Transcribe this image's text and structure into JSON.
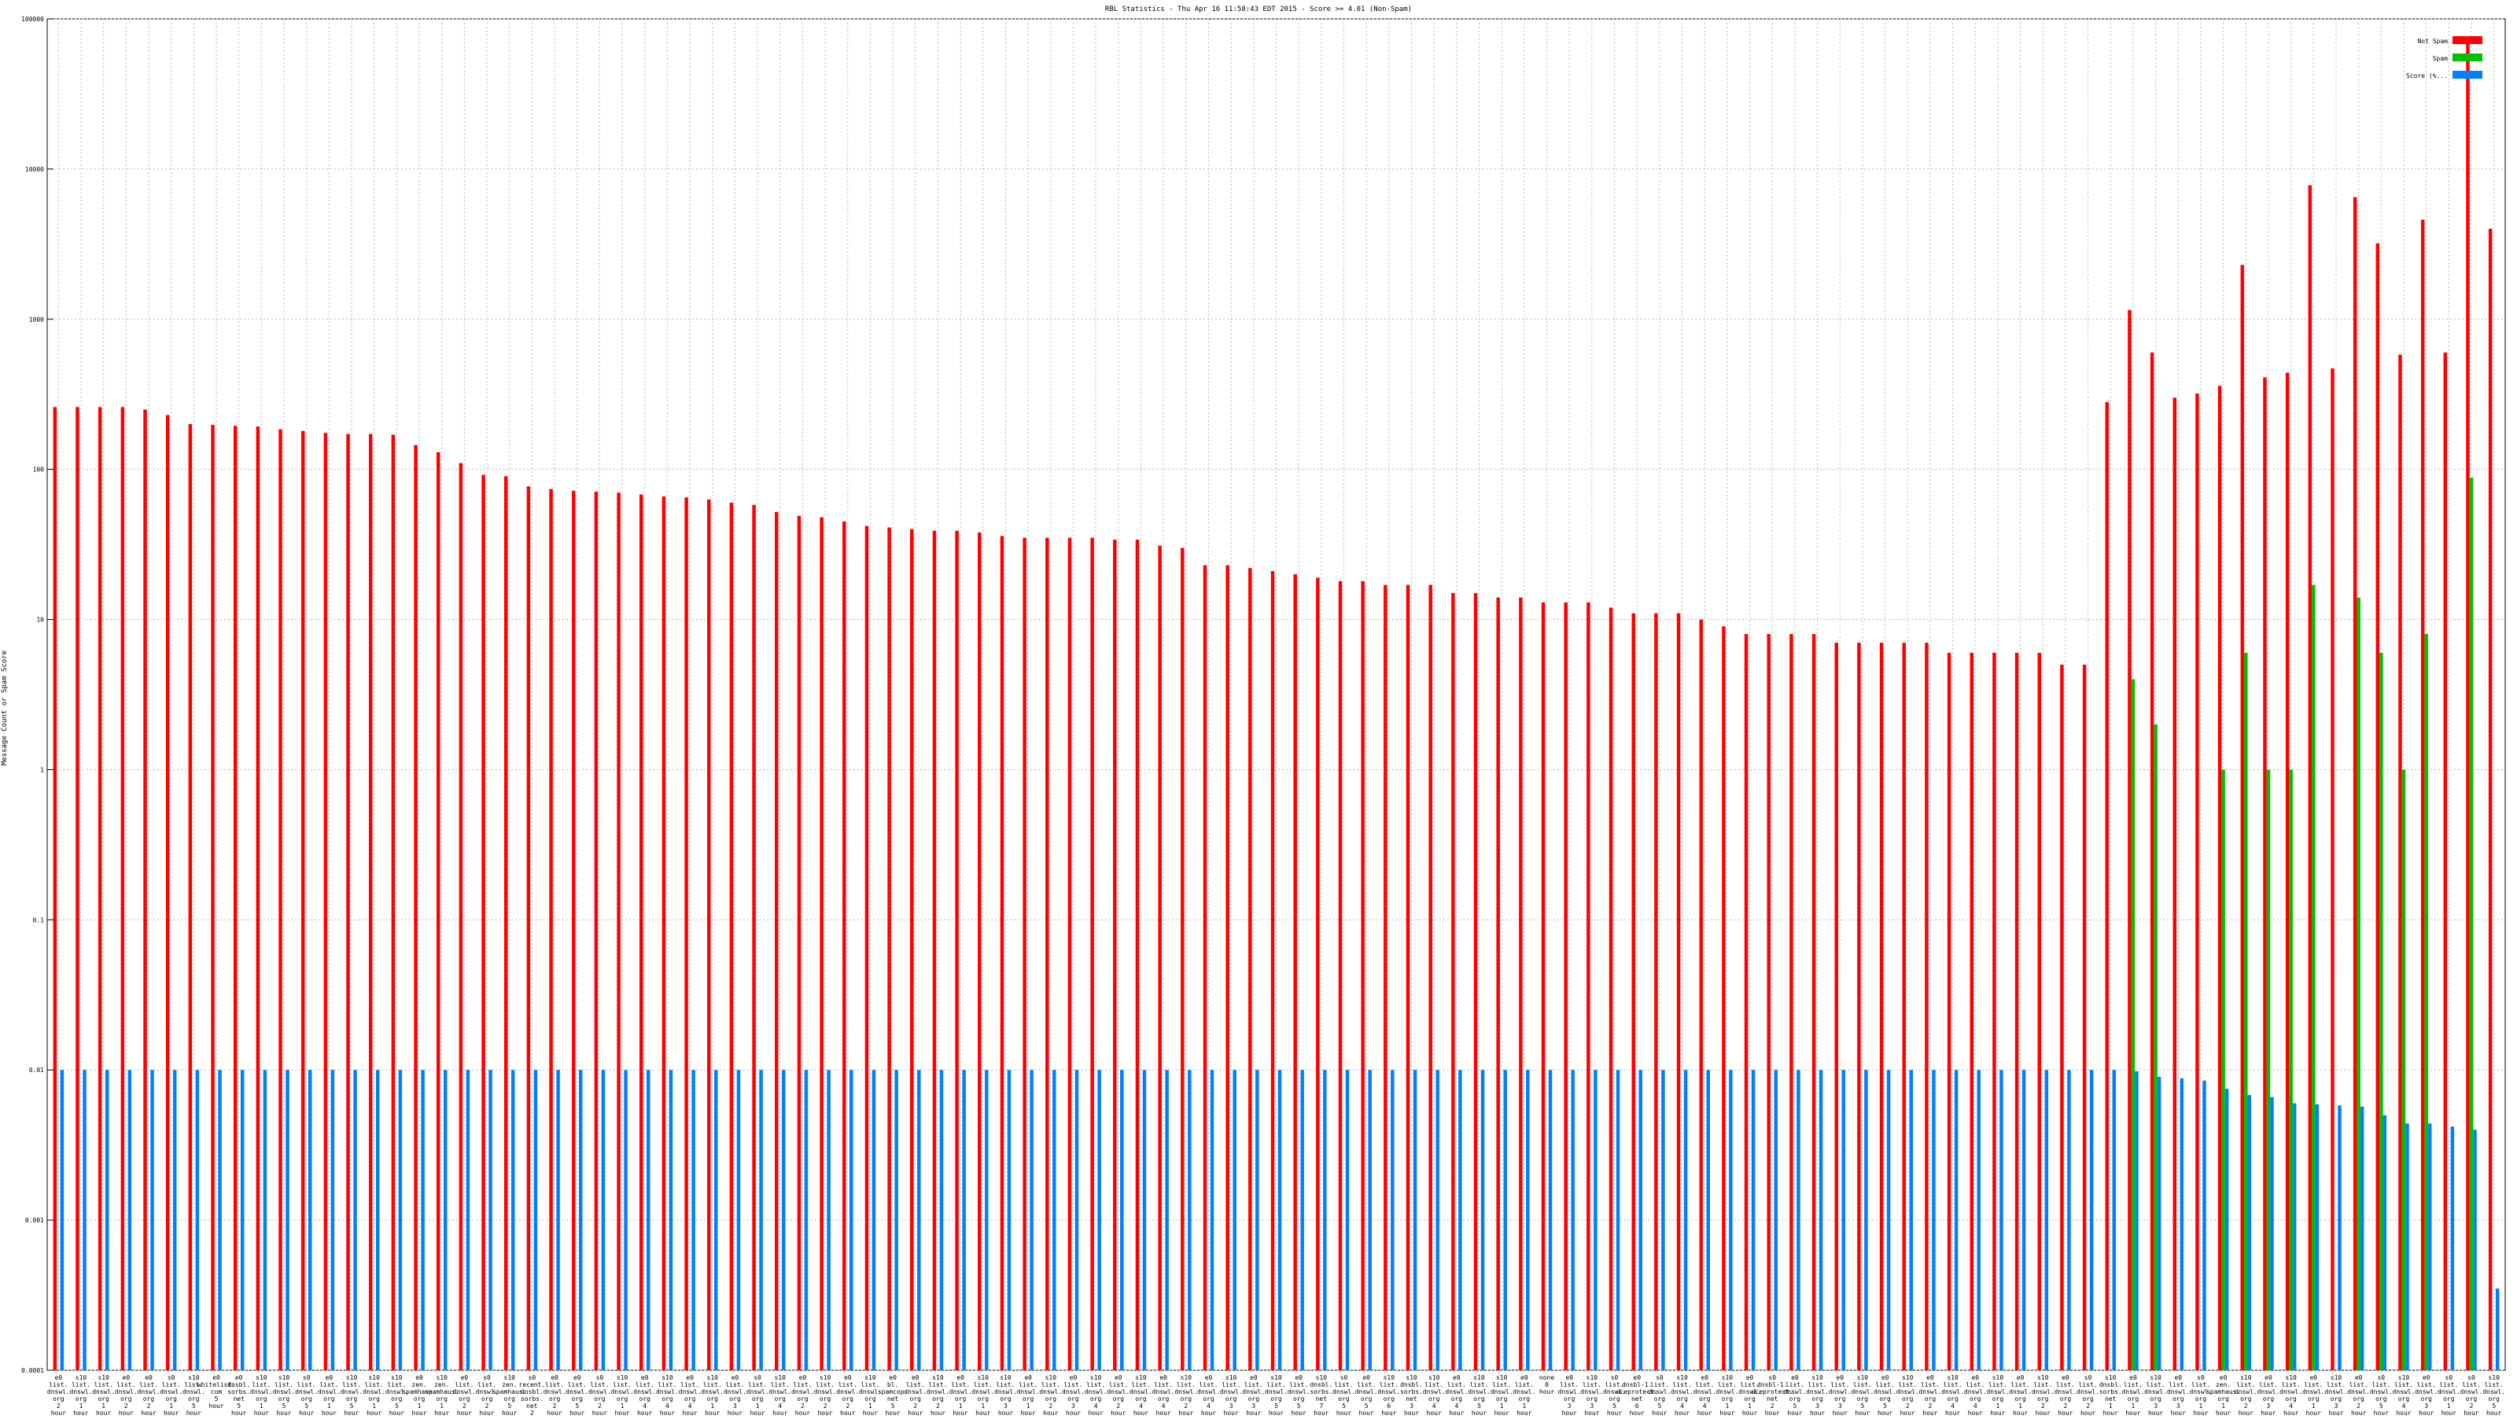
{
  "chart_data": {
    "type": "bar",
    "title": "RBL Statistics - Thu Apr 16 11:58:43 EDT 2015 - Score >= 4.01 (Non-Spam)",
    "xlabel": "",
    "ylabel": "Message Count or Spam Score",
    "yscale": "log",
    "ylim": [
      0.0001,
      100000
    ],
    "yticks": [
      0.0001,
      0.001,
      0.01,
      0.1,
      1,
      10,
      100,
      1000,
      10000,
      100000
    ],
    "ytick_labels": [
      "0.0001",
      "0.001",
      "0.01",
      "0.1",
      "1",
      "10",
      "100",
      "1000",
      "10000",
      "100000"
    ],
    "grid": true,
    "legend_position": "top-right",
    "colors": {
      "not_spam": "#ff0000",
      "spam": "#00c000",
      "score": "#0080ff"
    },
    "series": [
      {
        "name": "Not Spam",
        "values": [
          260,
          260,
          260,
          260,
          250,
          230,
          200,
          198,
          195,
          193,
          185,
          180,
          175,
          172,
          172,
          170,
          145,
          130,
          110,
          92,
          90,
          77,
          74,
          72,
          71,
          70,
          68,
          66,
          65,
          63,
          60,
          58,
          52,
          49,
          48,
          45,
          42,
          41,
          40,
          39,
          39,
          38,
          36,
          35,
          35,
          35,
          35,
          34,
          34,
          31,
          30,
          23,
          23,
          22,
          21,
          20,
          19,
          18,
          18,
          17,
          17,
          17,
          15,
          15,
          14,
          14,
          13,
          13,
          13,
          12,
          11,
          11,
          11,
          10,
          9,
          8,
          8,
          8,
          8,
          7,
          7,
          7,
          7,
          7,
          6,
          6,
          6,
          6,
          6,
          5,
          5,
          280,
          1150,
          600,
          300,
          320,
          360,
          2300,
          410,
          440,
          7800,
          470,
          6500,
          3200,
          580,
          4600,
          600,
          70000,
          4000
        ]
      },
      {
        "name": "Spam",
        "values": [
          0,
          0,
          0,
          0,
          0,
          0,
          0,
          0,
          0,
          0,
          0,
          0,
          0,
          0,
          0,
          0,
          0,
          0,
          0,
          0,
          0,
          0,
          0,
          0,
          0,
          0,
          0,
          0,
          0,
          0,
          0,
          0,
          0,
          0,
          0,
          0,
          0,
          0,
          0,
          0,
          0,
          0,
          0,
          0,
          0,
          0,
          0,
          0,
          0,
          0,
          0,
          0,
          0,
          0,
          0,
          0,
          0,
          0,
          0,
          0,
          0,
          0,
          0,
          0,
          0,
          0,
          0,
          0,
          0,
          0,
          0,
          0,
          0,
          0,
          0,
          0,
          0,
          0,
          0,
          0,
          0,
          0,
          0,
          0,
          0,
          0,
          0,
          0,
          0,
          0,
          0,
          0,
          4,
          2,
          0,
          0,
          1,
          6,
          1,
          1,
          17,
          0,
          14,
          6,
          1,
          8,
          0,
          88,
          0
        ]
      },
      {
        "name": "Score (%...",
        "values": [
          0.01,
          0.01,
          0.01,
          0.01,
          0.01,
          0.01,
          0.01,
          0.01,
          0.01,
          0.01,
          0.01,
          0.01,
          0.01,
          0.01,
          0.01,
          0.01,
          0.01,
          0.01,
          0.01,
          0.01,
          0.01,
          0.01,
          0.01,
          0.01,
          0.01,
          0.01,
          0.01,
          0.01,
          0.01,
          0.01,
          0.01,
          0.01,
          0.01,
          0.01,
          0.01,
          0.01,
          0.01,
          0.01,
          0.01,
          0.01,
          0.01,
          0.01,
          0.01,
          0.01,
          0.01,
          0.01,
          0.01,
          0.01,
          0.01,
          0.01,
          0.01,
          0.01,
          0.01,
          0.01,
          0.01,
          0.01,
          0.01,
          0.01,
          0.01,
          0.01,
          0.01,
          0.01,
          0.01,
          0.01,
          0.01,
          0.01,
          0.01,
          0.01,
          0.01,
          0.01,
          0.01,
          0.01,
          0.01,
          0.01,
          0.01,
          0.01,
          0.01,
          0.01,
          0.01,
          0.01,
          0.01,
          0.01,
          0.01,
          0.01,
          0.01,
          0.01,
          0.01,
          0.01,
          0.01,
          0.01,
          0.01,
          0.01,
          0.0098,
          0.009,
          0.0088,
          0.0085,
          0.0075,
          0.0068,
          0.0066,
          0.006,
          0.0059,
          0.0058,
          0.0057,
          0.005,
          0.0044,
          0.0044,
          0.0042,
          0.004,
          0.00035
        ]
      }
    ],
    "categories": [
      "e0 list. dnswl. org 2 hour",
      "s10 list. dnswl. org 1 hour",
      "s10 list. dnswl. org 1 hour",
      "e0 list. dnswl. org 2 hour",
      "e0 list. dnswl. org 2 hour",
      "s0 list. dnswl. org 1 hour",
      "s10 list. dnswl. org 5 hour",
      "e0 whitelist. com 5 hour",
      "e0 dnsbl. sorbs. net 5 hour",
      "s10 list. dnswl. org 1 hour",
      "s10 list. dnswl. org 5 hour",
      "s0 list. dnswl. org 5 hour",
      "e0 list. dnswl. org 1 hour",
      "s10 list. dnswl. org 5 hour",
      "s10 list. dnswl. org 1 hour",
      "s10 list. dnswl. org 5 hour",
      "e0 zen. spamhaus. org 1 hour",
      "s10 zen. spamhaus. org 1 hour",
      "e0 list. dnswl. org 2 hour",
      "s0 list. dnswl. org 2 hour",
      "s10 zen. spamhaus. org 5 hour",
      "s0 recent. dnsbl. sorbs. net 2 hour",
      "e0 list. dnswl. org 2 hour",
      "e0 list. dnswl. org 5 hour",
      "s0 list. dnswl. org 2 hour",
      "s10 list. dnswl. org 1 hour",
      "e0 list. dnswl. org 4 hour",
      "s10 list. dnswl. org 4 hour",
      "e0 list. dnswl. org 4 hour",
      "s10 list. dnswl. org 1 hour",
      "e0 list. dnswl. org 3 hour",
      "s0 list. dnswl. org 1 hour",
      "s10 list. dnswl. org 4 hour",
      "e0 list. dnswl. org 2 hour",
      "s10 list. dnswl. org 2 hour",
      "e0 list. dnswl. org 2 hour",
      "s10 list. dnswl. org 1 hour",
      "e0 bl. spamcop. net 5 hour",
      "e0 list. dnswl. org 2 hour",
      "s10 list. dnswl. org 2 hour",
      "e0 list. dnswl. org 1 hour",
      "s10 list. dnswl. org 1 hour",
      "s10 list. dnswl. org 3 hour",
      "e0 list. dnswl. org 1 hour",
      "s10 list. dnswl. org 2 hour",
      "e0 list. dnswl. org 3 hour",
      "s10 list. dnswl. org 4 hour",
      "e0 list. dnswl. org 2 hour",
      "s10 list. dnswl. org 4 hour",
      "e0 list. dnswl. org 4 hour",
      "s10 list. dnswl. org 2 hour",
      "e0 list. dnswl. org 4 hour",
      "s10 list. dnswl. org 3 hour",
      "e0 list. dnswl. org 3 hour",
      "s10 list. dnswl. org 5 hour",
      "e0 list. dnswl. org 5 hour",
      "s10 dnsbl. sorbs. net 7 hour",
      "s0 list. dnswl. org 5 hour",
      "e0 list. dnswl. org 5 hour",
      "s10 list. dnswl. org 6 hour",
      "s10 dnsbl. sorbs. net 3 hour",
      "s10 list. dnswl. org 4 hour",
      "e0 list. dnswl. org 4 hour",
      "s10 list. dnswl. org 5 hour",
      "s10 list. dnswl. org 1 hour",
      "e0 list. dnswl. org 1 hour",
      "none 0 hour",
      "e0 list. dnswl. org 3 hour",
      "s10 list. dnswl. org 3 hour",
      "s0 list. dnswl. org 5 hour",
      "e0 dnsbl-1. uceprotect. net 6 hour",
      "s0 list. dnswl. org 5 hour",
      "s10 list. dnswl. org 4 hour",
      "e0 list. dnswl. org 4 hour",
      "s10 list. dnswl. org 1 hour",
      "e0 list. dnswl. org 1 hour",
      "s0 dnsbl-1. uceprotect. net 2 hour",
      "e0 list. dnswl. org 5 hour",
      "s10 list. dnswl. org 3 hour",
      "e0 list. dnswl. org 3 hour",
      "s10 list. dnswl. org 5 hour",
      "e0 list. dnswl. org 5 hour",
      "s10 list. dnswl. org 2 hour",
      "e0 list. dnswl. org 2 hour",
      "s10 list. dnswl. org 4 hour",
      "e0 list. dnswl. org 4 hour",
      "s10 list. dnswl. org 1 hour",
      "e0 list. dnswl. org 1 hour",
      "s10 list. dnswl. org 2 hour",
      "e0 list. dnswl. org 2 hour",
      "s0 list. dnswl. org 2 hour",
      "s10 dnsbl. sorbs. net 1 hour",
      "e0 list. dnswl. org 1 hour",
      "s10 list. dnswl. org 3 hour",
      "e0 list. dnswl. org 3 hour",
      "s0 list. dnswl. org 1 hour",
      "e0 zen. spamhaus. org 1 hour",
      "s10 list. dnswl. org 2 hour",
      "e0 list. dnswl. org 3 hour",
      "s10 list. dnswl. org 4 hour",
      "e0 list. dnswl. org 1 hour",
      "s10 list. dnswl. org 3 hour",
      "e0 list. dnswl. org 2 hour",
      "s0 list. dnswl. org 5 hour",
      "s10 list. dnswl. org 4 hour",
      "e0 list. dnswl. org 3 hour",
      "s0 list. dnswl. org 1 hour",
      "s0 list. dnswl. org 2 hour",
      "s10 list. dnswl. org 5 hour"
    ]
  }
}
